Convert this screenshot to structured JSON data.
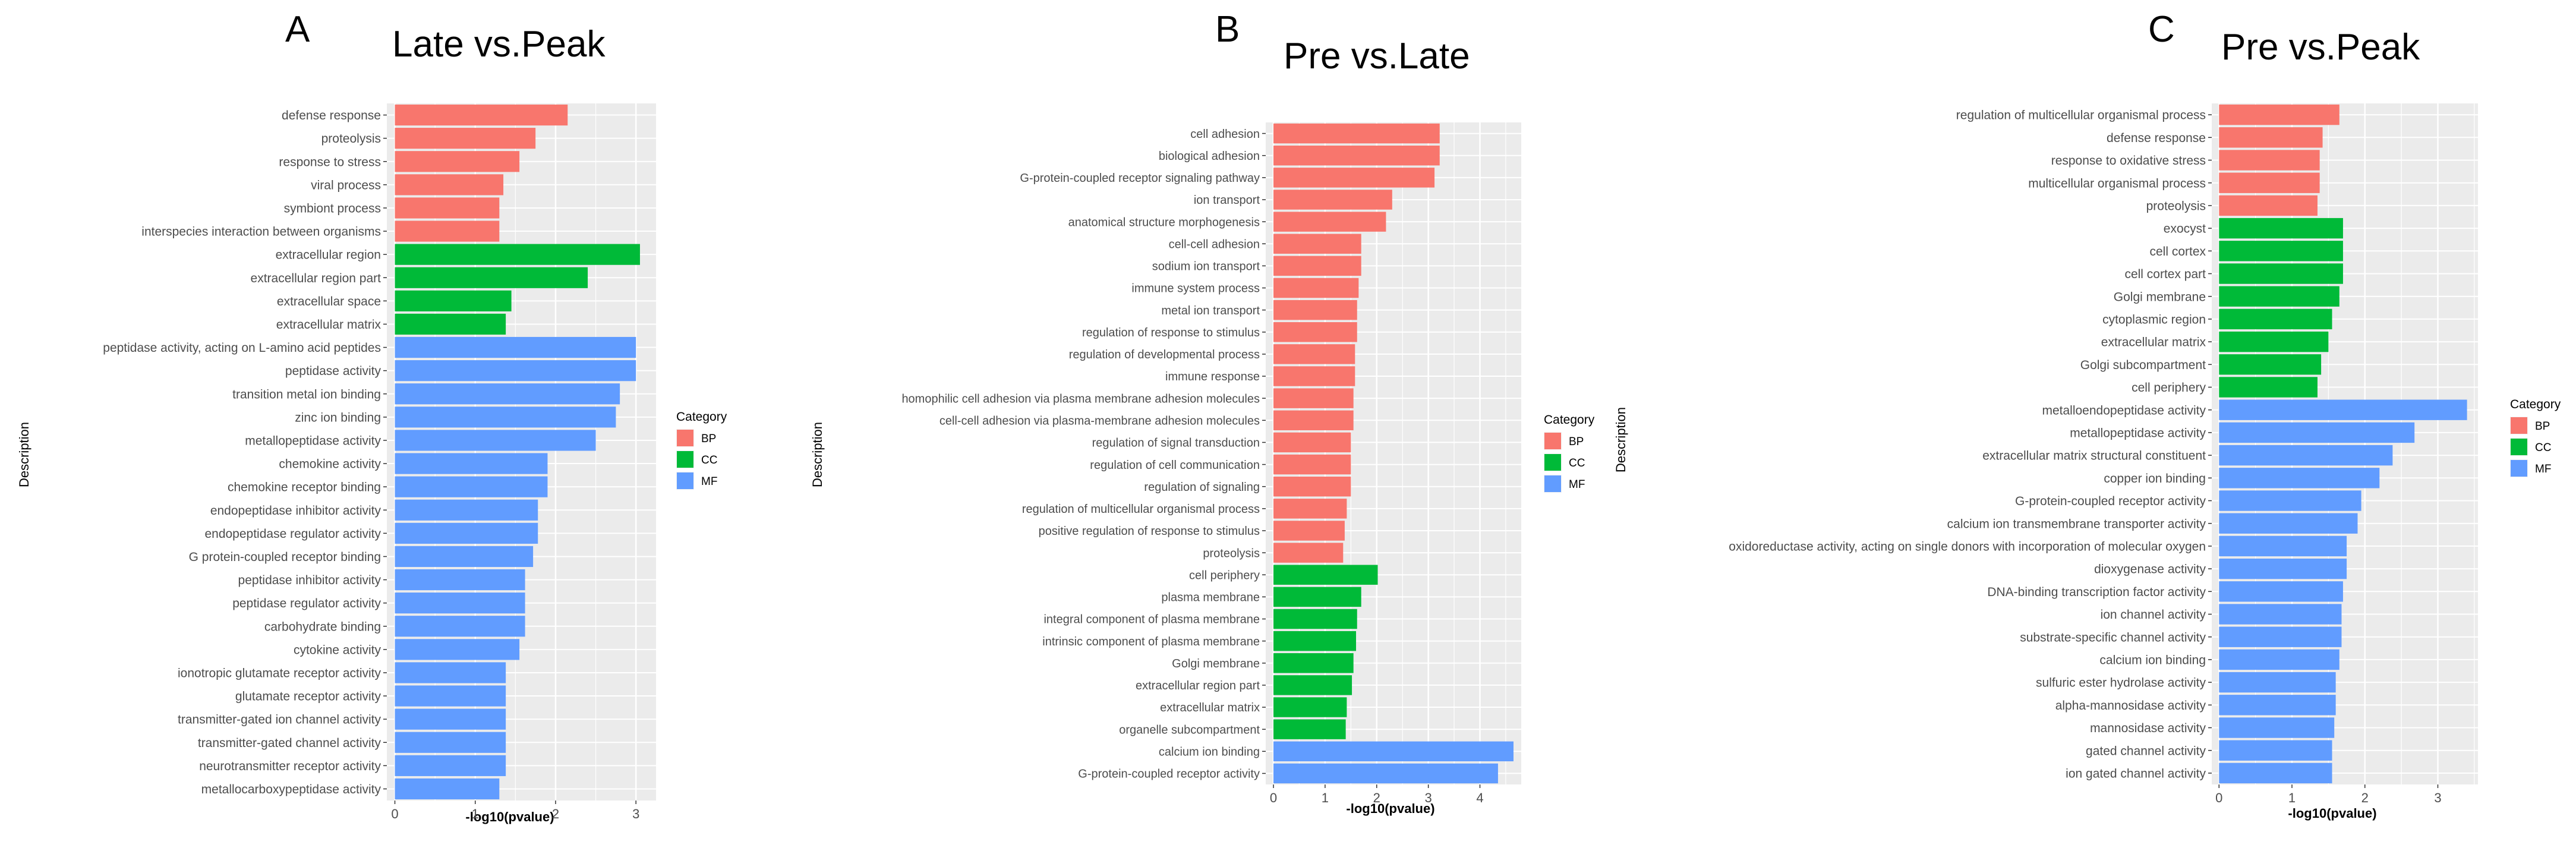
{
  "colors": {
    "BP": "#F8766D",
    "CC": "#00BA38",
    "MF": "#619CFF",
    "panel": "#EBEBEB",
    "grid": "#FFFFFF",
    "text": "#4D4D4D"
  },
  "chart_data": [
    {
      "type": "bar",
      "orientation": "horizontal",
      "panel_letter": "A",
      "title": "Late vs.Peak",
      "xlabel": "-log10(pvalue)",
      "ylabel": "Description",
      "xlim": [
        -0.1,
        3.25
      ],
      "xticks": [
        0,
        1,
        2,
        3
      ],
      "legend_title": "Category",
      "legend": [
        "BP",
        "CC",
        "MF"
      ],
      "legend_position": "right",
      "categories": [
        "defense response",
        "proteolysis",
        "response to stress",
        "viral process",
        "symbiont process",
        "interspecies interaction between organisms",
        "extracellular region",
        "extracellular region part",
        "extracellular space",
        "extracellular matrix",
        "peptidase activity, acting on L-amino acid peptides",
        "peptidase activity",
        "transition metal ion binding",
        "zinc ion binding",
        "metallopeptidase activity",
        "chemokine activity",
        "chemokine receptor binding",
        "endopeptidase inhibitor activity",
        "endopeptidase regulator activity",
        "G protein-coupled receptor binding",
        "peptidase inhibitor activity",
        "peptidase regulator activity",
        "carbohydrate binding",
        "cytokine activity",
        "ionotropic glutamate receptor activity",
        "glutamate receptor activity",
        "transmitter-gated ion channel activity",
        "transmitter-gated channel activity",
        "neurotransmitter receptor activity",
        "metallocarboxypeptidase activity"
      ],
      "values": [
        2.15,
        1.75,
        1.55,
        1.35,
        1.3,
        1.3,
        3.05,
        2.4,
        1.45,
        1.38,
        3.0,
        3.0,
        2.8,
        2.75,
        2.5,
        1.9,
        1.9,
        1.78,
        1.78,
        1.72,
        1.62,
        1.62,
        1.62,
        1.55,
        1.38,
        1.38,
        1.38,
        1.38,
        1.38,
        1.3
      ],
      "category_group": [
        "BP",
        "BP",
        "BP",
        "BP",
        "BP",
        "BP",
        "CC",
        "CC",
        "CC",
        "CC",
        "MF",
        "MF",
        "MF",
        "MF",
        "MF",
        "MF",
        "MF",
        "MF",
        "MF",
        "MF",
        "MF",
        "MF",
        "MF",
        "MF",
        "MF",
        "MF",
        "MF",
        "MF",
        "MF",
        "MF"
      ]
    },
    {
      "type": "bar",
      "orientation": "horizontal",
      "panel_letter": "B",
      "title": "Pre vs.Late",
      "xlabel": "-log10(pvalue)",
      "ylabel": "Description",
      "xlim": [
        -0.15,
        4.8
      ],
      "xticks": [
        0,
        1,
        2,
        3,
        4
      ],
      "legend_title": "Category",
      "legend": [
        "BP",
        "CC",
        "MF"
      ],
      "legend_position": "right",
      "categories": [
        "cell adhesion",
        "biological adhesion",
        "G-protein-coupled receptor signaling pathway",
        "ion transport",
        "anatomical structure morphogenesis",
        "cell-cell adhesion",
        "sodium ion transport",
        "immune system process",
        "metal ion transport",
        "regulation of response to stimulus",
        "regulation of developmental process",
        "immune response",
        "homophilic cell adhesion via plasma membrane adhesion molecules",
        "cell-cell adhesion via plasma-membrane adhesion molecules",
        "regulation of signal transduction",
        "regulation of cell communication",
        "regulation of signaling",
        "regulation of multicellular organismal process",
        "positive regulation of response to stimulus",
        "proteolysis",
        "cell periphery",
        "plasma membrane",
        "integral component of plasma membrane",
        "intrinsic component of plasma membrane",
        "Golgi membrane",
        "extracellular region part",
        "extracellular matrix",
        "organelle subcompartment",
        "calcium ion binding",
        "G-protein-coupled receptor activity"
      ],
      "values": [
        3.22,
        3.22,
        3.12,
        2.3,
        2.18,
        1.7,
        1.7,
        1.65,
        1.62,
        1.62,
        1.58,
        1.58,
        1.55,
        1.55,
        1.5,
        1.5,
        1.5,
        1.42,
        1.38,
        1.35,
        2.02,
        1.7,
        1.62,
        1.6,
        1.55,
        1.52,
        1.42,
        1.4,
        4.65,
        4.35
      ],
      "category_group": [
        "BP",
        "BP",
        "BP",
        "BP",
        "BP",
        "BP",
        "BP",
        "BP",
        "BP",
        "BP",
        "BP",
        "BP",
        "BP",
        "BP",
        "BP",
        "BP",
        "BP",
        "BP",
        "BP",
        "BP",
        "CC",
        "CC",
        "CC",
        "CC",
        "CC",
        "CC",
        "CC",
        "CC",
        "MF",
        "MF"
      ]
    },
    {
      "type": "bar",
      "orientation": "horizontal",
      "panel_letter": "C",
      "title": "Pre vs.Peak",
      "xlabel": "-log10(pvalue)",
      "ylabel": "Description",
      "xlim": [
        -0.1,
        3.55
      ],
      "xticks": [
        0,
        1,
        2,
        3
      ],
      "legend_title": "Category",
      "legend": [
        "BP",
        "CC",
        "MF"
      ],
      "legend_position": "right",
      "categories": [
        "regulation of multicellular organismal process",
        "defense response",
        "response to oxidative stress",
        "multicellular organismal process",
        "proteolysis",
        "exocyst",
        "cell cortex",
        "cell cortex part",
        "Golgi membrane",
        "cytoplasmic region",
        "extracellular matrix",
        "Golgi subcompartment",
        "cell periphery",
        "metalloendopeptidase activity",
        "metallopeptidase activity",
        "extracellular matrix structural constituent",
        "copper ion binding",
        "G-protein-coupled receptor activity",
        "calcium ion transmembrane transporter activity",
        "oxidoreductase activity, acting on single donors with incorporation of molecular oxygen",
        "dioxygenase activity",
        "DNA-binding transcription factor activity",
        "ion channel activity",
        "substrate-specific channel activity",
        "calcium ion binding",
        "sulfuric ester hydrolase activity",
        "alpha-mannosidase activity",
        "mannosidase activity",
        "gated channel activity",
        "ion gated channel activity"
      ],
      "values": [
        1.65,
        1.42,
        1.38,
        1.38,
        1.35,
        1.7,
        1.7,
        1.7,
        1.65,
        1.55,
        1.5,
        1.4,
        1.35,
        3.4,
        2.68,
        2.38,
        2.2,
        1.95,
        1.9,
        1.75,
        1.75,
        1.7,
        1.68,
        1.68,
        1.65,
        1.6,
        1.6,
        1.58,
        1.55,
        1.55
      ],
      "category_group": [
        "BP",
        "BP",
        "BP",
        "BP",
        "BP",
        "CC",
        "CC",
        "CC",
        "CC",
        "CC",
        "CC",
        "CC",
        "CC",
        "MF",
        "MF",
        "MF",
        "MF",
        "MF",
        "MF",
        "MF",
        "MF",
        "MF",
        "MF",
        "MF",
        "MF",
        "MF",
        "MF",
        "MF",
        "MF",
        "MF"
      ]
    }
  ]
}
